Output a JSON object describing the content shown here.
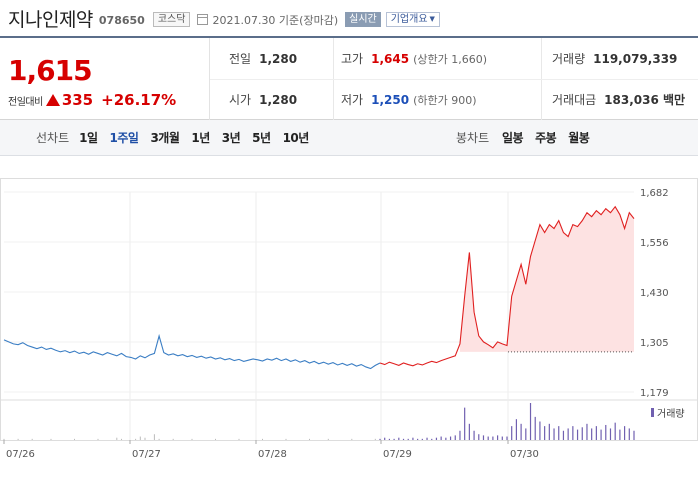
{
  "header": {
    "stock_name": "지나인제약",
    "stock_code": "078650",
    "market": "코스닥",
    "date_text": "2021.07.30 기준(장마감)",
    "realtime_label": "실시간",
    "company_label": "기업개요"
  },
  "quote": {
    "current_price": "1,615",
    "change_label": "전일대비",
    "change_value": "335",
    "change_pct": "+26.17%",
    "prev_close_label": "전일",
    "prev_close": "1,280",
    "open_label": "시가",
    "open": "1,280",
    "high_label": "고가",
    "high": "1,645",
    "upper_limit": "(상한가 1,660)",
    "low_label": "저가",
    "low": "1,250",
    "lower_limit": "(하한가 900)",
    "volume_label": "거래량",
    "volume": "119,079,339",
    "amount_label": "거래대금",
    "amount": "183,036 백만"
  },
  "tabs": {
    "line_label": "선차트",
    "line_tabs": [
      "1일",
      "1주일",
      "3개월",
      "1년",
      "3년",
      "5년",
      "10년"
    ],
    "active_line_tab": "1주일",
    "candle_label": "봉차트",
    "candle_tabs": [
      "일봉",
      "주봉",
      "월봉"
    ]
  },
  "chart_data": {
    "type": "line",
    "y_ticks": [
      "1,682",
      "1,556",
      "1,430",
      "1,305",
      "1,179"
    ],
    "ylim": [
      1179,
      1682
    ],
    "x_labels": [
      "07/26",
      "07/27",
      "07/28",
      "07/29",
      "07/30"
    ],
    "reference_line": 1280,
    "colors": {
      "before": "#3b7ec4",
      "up": "#e02020",
      "fill": "#fde2e2",
      "volume": "#7060b0",
      "volume_old": "#bbbbbb"
    },
    "volume_label": "거래량",
    "series_before": [
      1310,
      1305,
      1300,
      1298,
      1303,
      1296,
      1292,
      1288,
      1292,
      1286,
      1289,
      1284,
      1280,
      1283,
      1278,
      1282,
      1276,
      1279,
      1274,
      1280,
      1276,
      1272,
      1278,
      1274,
      1270,
      1276,
      1268,
      1266,
      1262,
      1270,
      1265,
      1272,
      1276,
      1320,
      1278,
      1272,
      1275,
      1270,
      1273,
      1268,
      1271,
      1266,
      1269,
      1264,
      1267,
      1262,
      1265,
      1260,
      1263,
      1258,
      1261,
      1256,
      1259,
      1262,
      1260,
      1257,
      1262,
      1259,
      1264,
      1258,
      1262,
      1256,
      1260,
      1254,
      1258,
      1252,
      1256,
      1250,
      1254,
      1249,
      1253,
      1247,
      1251,
      1246,
      1250,
      1244,
      1248,
      1242,
      1238,
      1246,
      1252
    ],
    "series_after": [
      1252,
      1248,
      1254,
      1250,
      1246,
      1252,
      1248,
      1245,
      1250,
      1247,
      1252,
      1256,
      1253,
      1258,
      1262,
      1266,
      1270,
      1300,
      1420,
      1530,
      1380,
      1320,
      1305,
      1298,
      1290,
      1305,
      1300,
      1296,
      1420,
      1460,
      1500,
      1450,
      1520,
      1560,
      1600,
      1580,
      1600,
      1590,
      1610,
      1580,
      1570,
      1600,
      1595,
      1610,
      1630,
      1620,
      1635,
      1625,
      1640,
      1630,
      1645,
      1625,
      1590,
      1630,
      1615
    ],
    "volume_after": [
      1,
      2,
      1,
      1,
      2,
      1,
      1,
      2,
      1,
      1,
      2,
      1,
      2,
      3,
      2,
      3,
      4,
      8,
      28,
      14,
      8,
      5,
      4,
      3,
      3,
      4,
      3,
      3,
      12,
      18,
      14,
      10,
      32,
      20,
      16,
      12,
      14,
      10,
      12,
      8,
      10,
      12,
      9,
      11,
      14,
      10,
      12,
      9,
      13,
      10,
      15,
      9,
      12,
      10,
      8
    ],
    "volume_before": [
      1,
      0,
      0,
      1,
      0,
      0,
      1,
      0,
      0,
      0,
      1,
      0,
      0,
      0,
      0,
      1,
      0,
      0,
      0,
      0,
      1,
      0,
      0,
      0,
      2,
      1,
      0,
      0,
      1,
      3,
      2,
      0,
      5,
      1,
      0,
      0,
      1,
      0,
      0,
      0,
      1,
      0,
      0,
      0,
      0,
      1,
      0,
      0,
      0,
      0,
      1,
      0,
      0,
      0,
      0,
      1,
      0,
      0,
      0,
      0,
      1,
      0,
      0,
      0,
      0,
      1,
      0,
      0,
      0,
      1,
      0,
      0,
      0,
      0,
      1,
      0,
      0,
      0,
      0,
      1,
      0
    ]
  }
}
